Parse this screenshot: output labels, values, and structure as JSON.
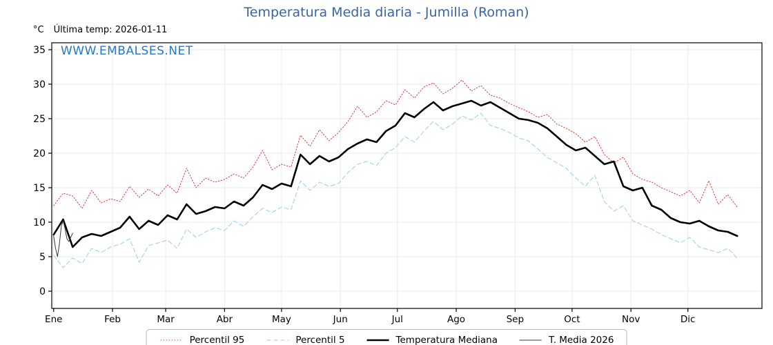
{
  "page": {
    "title": "Temperatura Media diaria - Jumilla (Roman)"
  },
  "header": {
    "unit_label": "°C",
    "last_temp_label": "Última temp: 2026-01-11",
    "watermark": "WWW.EMBALSES.NET"
  },
  "colors": {
    "title": "#3a64a8",
    "watermark": "#2478c8",
    "axis": "#000000",
    "grid": "#ebebf0",
    "tick_text": "#000000"
  },
  "chart_data": {
    "type": "line",
    "title": "Temperatura Media diaria - Jumilla (Roman)",
    "xlabel": "",
    "ylabel": "°C",
    "ylim": [
      -2.5,
      36
    ],
    "xlim_days": [
      0,
      374
    ],
    "yticks": [
      0,
      5,
      10,
      15,
      20,
      25,
      30,
      35
    ],
    "grid": true,
    "legend_position": "bottom",
    "months": [
      {
        "label": "Ene",
        "day": 1
      },
      {
        "label": "Feb",
        "day": 32
      },
      {
        "label": "Mar",
        "day": 60
      },
      {
        "label": "Abr",
        "day": 91
      },
      {
        "label": "May",
        "day": 121
      },
      {
        "label": "Jun",
        "day": 152
      },
      {
        "label": "Jul",
        "day": 182
      },
      {
        "label": "Ago",
        "day": 213
      },
      {
        "label": "Sep",
        "day": 244
      },
      {
        "label": "Oct",
        "day": 274
      },
      {
        "label": "Nov",
        "day": 305
      },
      {
        "label": "Dic",
        "day": 335
      }
    ],
    "x_days": [
      1,
      6,
      11,
      16,
      21,
      26,
      31,
      36,
      41,
      46,
      51,
      56,
      61,
      66,
      71,
      76,
      81,
      86,
      91,
      96,
      101,
      106,
      111,
      116,
      121,
      126,
      131,
      136,
      141,
      146,
      151,
      156,
      161,
      166,
      171,
      176,
      181,
      186,
      191,
      196,
      201,
      206,
      211,
      216,
      221,
      226,
      231,
      236,
      241,
      246,
      251,
      256,
      261,
      266,
      271,
      276,
      281,
      286,
      291,
      296,
      301,
      306,
      311,
      316,
      321,
      326,
      331,
      336,
      341,
      346,
      351,
      356,
      361
    ],
    "series": [
      {
        "name": "Percentil 95",
        "color": "#dd3a3a",
        "dash": "1.5 2.5",
        "width": 1,
        "values": [
          12.4,
          14.2,
          13.8,
          12.0,
          14.6,
          12.8,
          13.4,
          13.0,
          15.2,
          13.6,
          14.8,
          13.8,
          15.4,
          14.2,
          17.8,
          15.0,
          16.4,
          15.8,
          16.2,
          17.0,
          16.4,
          18.0,
          20.4,
          17.6,
          18.4,
          18.0,
          22.6,
          21.0,
          23.4,
          21.8,
          23.0,
          24.6,
          26.8,
          25.2,
          26.0,
          27.6,
          27.0,
          29.2,
          28.0,
          29.6,
          30.2,
          28.6,
          29.4,
          30.6,
          29.0,
          29.8,
          28.4,
          28.0,
          27.2,
          26.6,
          26.0,
          25.2,
          25.6,
          24.2,
          23.6,
          22.8,
          21.6,
          22.4,
          19.8,
          18.6,
          19.4,
          17.0,
          16.2,
          15.8,
          15.0,
          14.4,
          13.8,
          14.6,
          12.8,
          16.0,
          12.6,
          14.0,
          12.2
        ]
      },
      {
        "name": "Percentil 5",
        "color": "#a9d6e6",
        "dash": "6 4",
        "width": 1.2,
        "values": [
          5.2,
          3.4,
          4.8,
          4.0,
          6.2,
          5.6,
          6.4,
          6.8,
          7.6,
          4.2,
          6.6,
          7.0,
          7.4,
          6.2,
          9.0,
          7.8,
          8.6,
          9.2,
          8.8,
          10.2,
          9.4,
          10.8,
          12.0,
          11.4,
          12.2,
          11.8,
          16.0,
          14.6,
          15.8,
          15.2,
          15.6,
          17.2,
          18.4,
          18.8,
          18.2,
          20.0,
          20.8,
          22.4,
          21.6,
          23.2,
          24.6,
          23.4,
          24.2,
          25.4,
          24.8,
          25.8,
          24.0,
          23.6,
          23.0,
          22.2,
          21.8,
          20.6,
          19.4,
          18.6,
          17.8,
          16.4,
          15.2,
          16.8,
          13.0,
          11.6,
          12.4,
          10.2,
          9.6,
          9.0,
          8.2,
          7.6,
          7.0,
          7.8,
          6.4,
          6.0,
          5.6,
          6.2,
          4.8
        ]
      },
      {
        "name": "Temperatura Mediana",
        "color": "#000000",
        "dash": "",
        "width": 2.6,
        "values": [
          8.2,
          10.4,
          6.4,
          7.8,
          8.3,
          8.0,
          8.6,
          9.2,
          10.8,
          9.0,
          10.2,
          9.6,
          11.0,
          10.4,
          12.6,
          11.2,
          11.6,
          12.2,
          12.0,
          13.0,
          12.4,
          13.6,
          15.4,
          14.8,
          15.6,
          15.2,
          19.8,
          18.4,
          19.6,
          18.8,
          19.4,
          20.6,
          21.4,
          22.0,
          21.6,
          23.2,
          24.0,
          25.8,
          25.2,
          26.4,
          27.4,
          26.2,
          26.8,
          27.2,
          27.6,
          26.9,
          27.4,
          26.6,
          25.8,
          25.0,
          24.8,
          24.4,
          23.6,
          22.4,
          21.2,
          20.4,
          20.8,
          19.6,
          18.4,
          18.8,
          15.2,
          14.6,
          15.0,
          12.4,
          11.8,
          10.6,
          10.0,
          9.8,
          10.2,
          9.4,
          8.8,
          8.6,
          8.0
        ]
      },
      {
        "name": "T. Media 2026",
        "color": "#3a3a3a",
        "dash": "",
        "width": 1,
        "x": [
          1,
          2,
          3,
          4,
          5,
          6,
          7,
          8,
          9,
          10,
          11
        ],
        "values": [
          8.0,
          6.2,
          5.0,
          6.8,
          9.4,
          10.2,
          9.0,
          7.6,
          7.2,
          7.8,
          8.4
        ]
      }
    ]
  }
}
